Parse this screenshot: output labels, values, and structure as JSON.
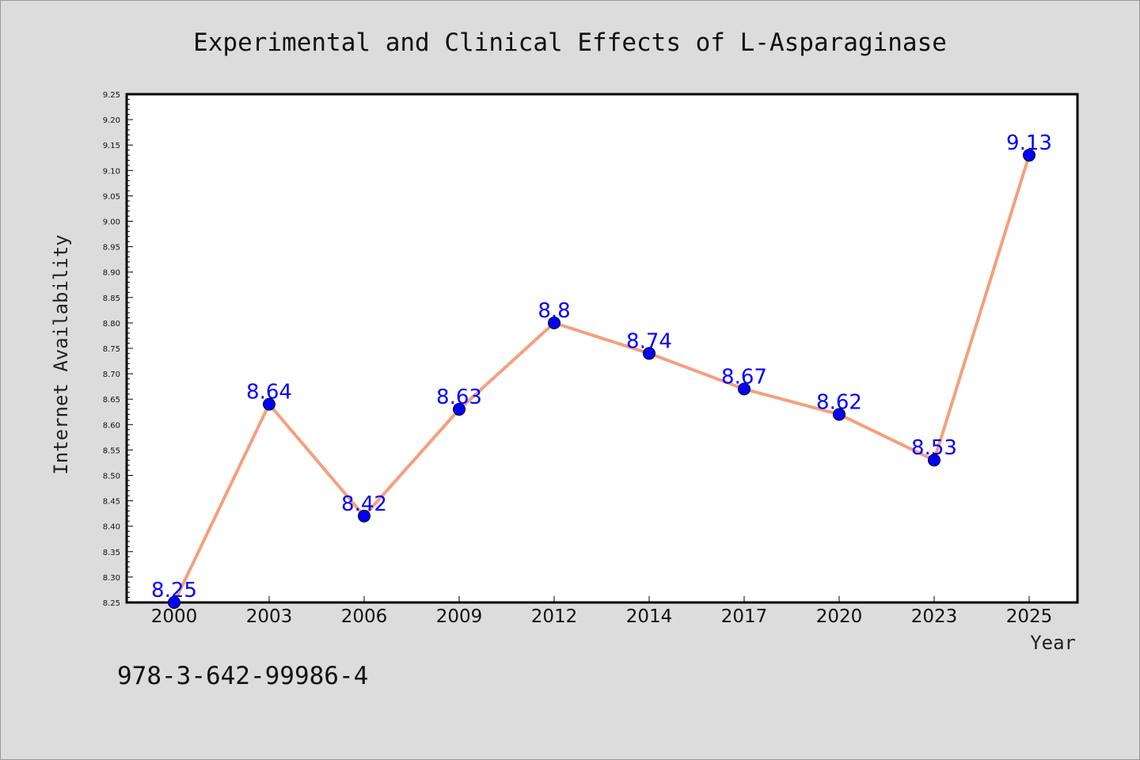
{
  "chart_data": {
    "type": "line",
    "title": "Experimental and Clinical Effects of L-Asparaginase",
    "xlabel": "Year",
    "ylabel": "Internet Availability",
    "categories": [
      "2000",
      "2003",
      "2006",
      "2009",
      "2012",
      "2014",
      "2017",
      "2020",
      "2023",
      "2025"
    ],
    "values": [
      8.25,
      8.64,
      8.42,
      8.63,
      8.8,
      8.74,
      8.67,
      8.62,
      8.53,
      9.13
    ],
    "data_labels": [
      "8.25",
      "8.64",
      "8.42",
      "8.63",
      "8.8",
      "8.74",
      "8.67",
      "8.62",
      "8.53",
      "9.13"
    ],
    "ylim": [
      8.25,
      9.25
    ],
    "yticks": [
      "8.25",
      "8.30",
      "8.35",
      "8.40",
      "8.45",
      "8.50",
      "8.55",
      "8.60",
      "8.65",
      "8.70",
      "8.75",
      "8.80",
      "8.85",
      "8.90",
      "8.95",
      "9.00",
      "9.05",
      "9.10",
      "9.15",
      "9.20",
      "9.25"
    ],
    "grid": false,
    "line_color": "#f4a07c",
    "marker_color": "#0000ff",
    "label_color": "#0000ff"
  },
  "footnote": "978-3-642-99986-4"
}
